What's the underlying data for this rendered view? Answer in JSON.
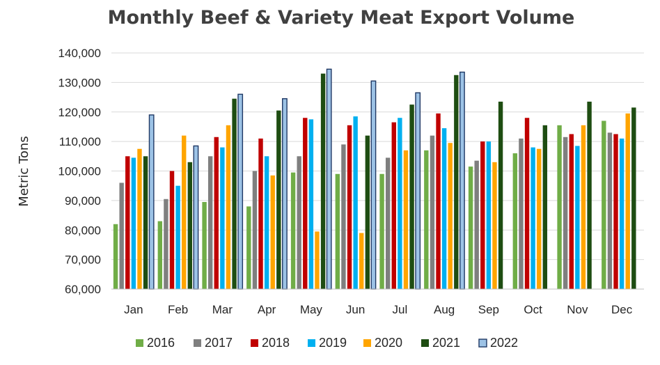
{
  "chart_data": {
    "type": "bar",
    "title": "Monthly Beef & Variety Meat Export Volume",
    "xlabel": "",
    "ylabel": "Metric Tons",
    "ylim": [
      60000,
      140000
    ],
    "yticks": [
      60000,
      70000,
      80000,
      90000,
      100000,
      110000,
      120000,
      130000,
      140000
    ],
    "ytick_labels": [
      "60,000",
      "70,000",
      "80,000",
      "90,000",
      "100,000",
      "110,000",
      "120,000",
      "130,000",
      "140,000"
    ],
    "grid": true,
    "legend_position": "bottom",
    "categories": [
      "Jan",
      "Feb",
      "Mar",
      "Apr",
      "May",
      "Jun",
      "Jul",
      "Aug",
      "Sep",
      "Oct",
      "Nov",
      "Dec"
    ],
    "series": [
      {
        "name": "2016",
        "color": "#70ad47",
        "values": [
          82000,
          83000,
          89500,
          88000,
          99500,
          99000,
          99000,
          107000,
          101500,
          106000,
          115500,
          117000
        ]
      },
      {
        "name": "2017",
        "color": "#7f7f7f",
        "values": [
          96000,
          90500,
          105000,
          100000,
          105000,
          109000,
          104500,
          112000,
          103500,
          111000,
          111500,
          113000
        ]
      },
      {
        "name": "2018",
        "color": "#c00000",
        "values": [
          105000,
          100000,
          111500,
          111000,
          118000,
          115500,
          116500,
          119500,
          110000,
          118000,
          112500,
          112500
        ]
      },
      {
        "name": "2019",
        "color": "#00b0f0",
        "values": [
          104500,
          95000,
          108000,
          105000,
          117500,
          118500,
          118000,
          114500,
          110000,
          108000,
          108500,
          111000
        ]
      },
      {
        "name": "2020",
        "color": "#ffa500",
        "values": [
          107500,
          112000,
          115500,
          98500,
          79500,
          79000,
          107000,
          109500,
          103000,
          107500,
          115500,
          119500
        ]
      },
      {
        "name": "2021",
        "color": "#1e4d12",
        "values": [
          105000,
          103000,
          124500,
          120500,
          133000,
          112000,
          122500,
          132500,
          123500,
          115500,
          123500,
          121500
        ]
      },
      {
        "name": "2022",
        "color": "#9dc3e6",
        "stroke": "#1f3864",
        "values": [
          119000,
          108500,
          126000,
          124500,
          134500,
          130500,
          126500,
          133500,
          null,
          null,
          null,
          null
        ]
      }
    ]
  }
}
